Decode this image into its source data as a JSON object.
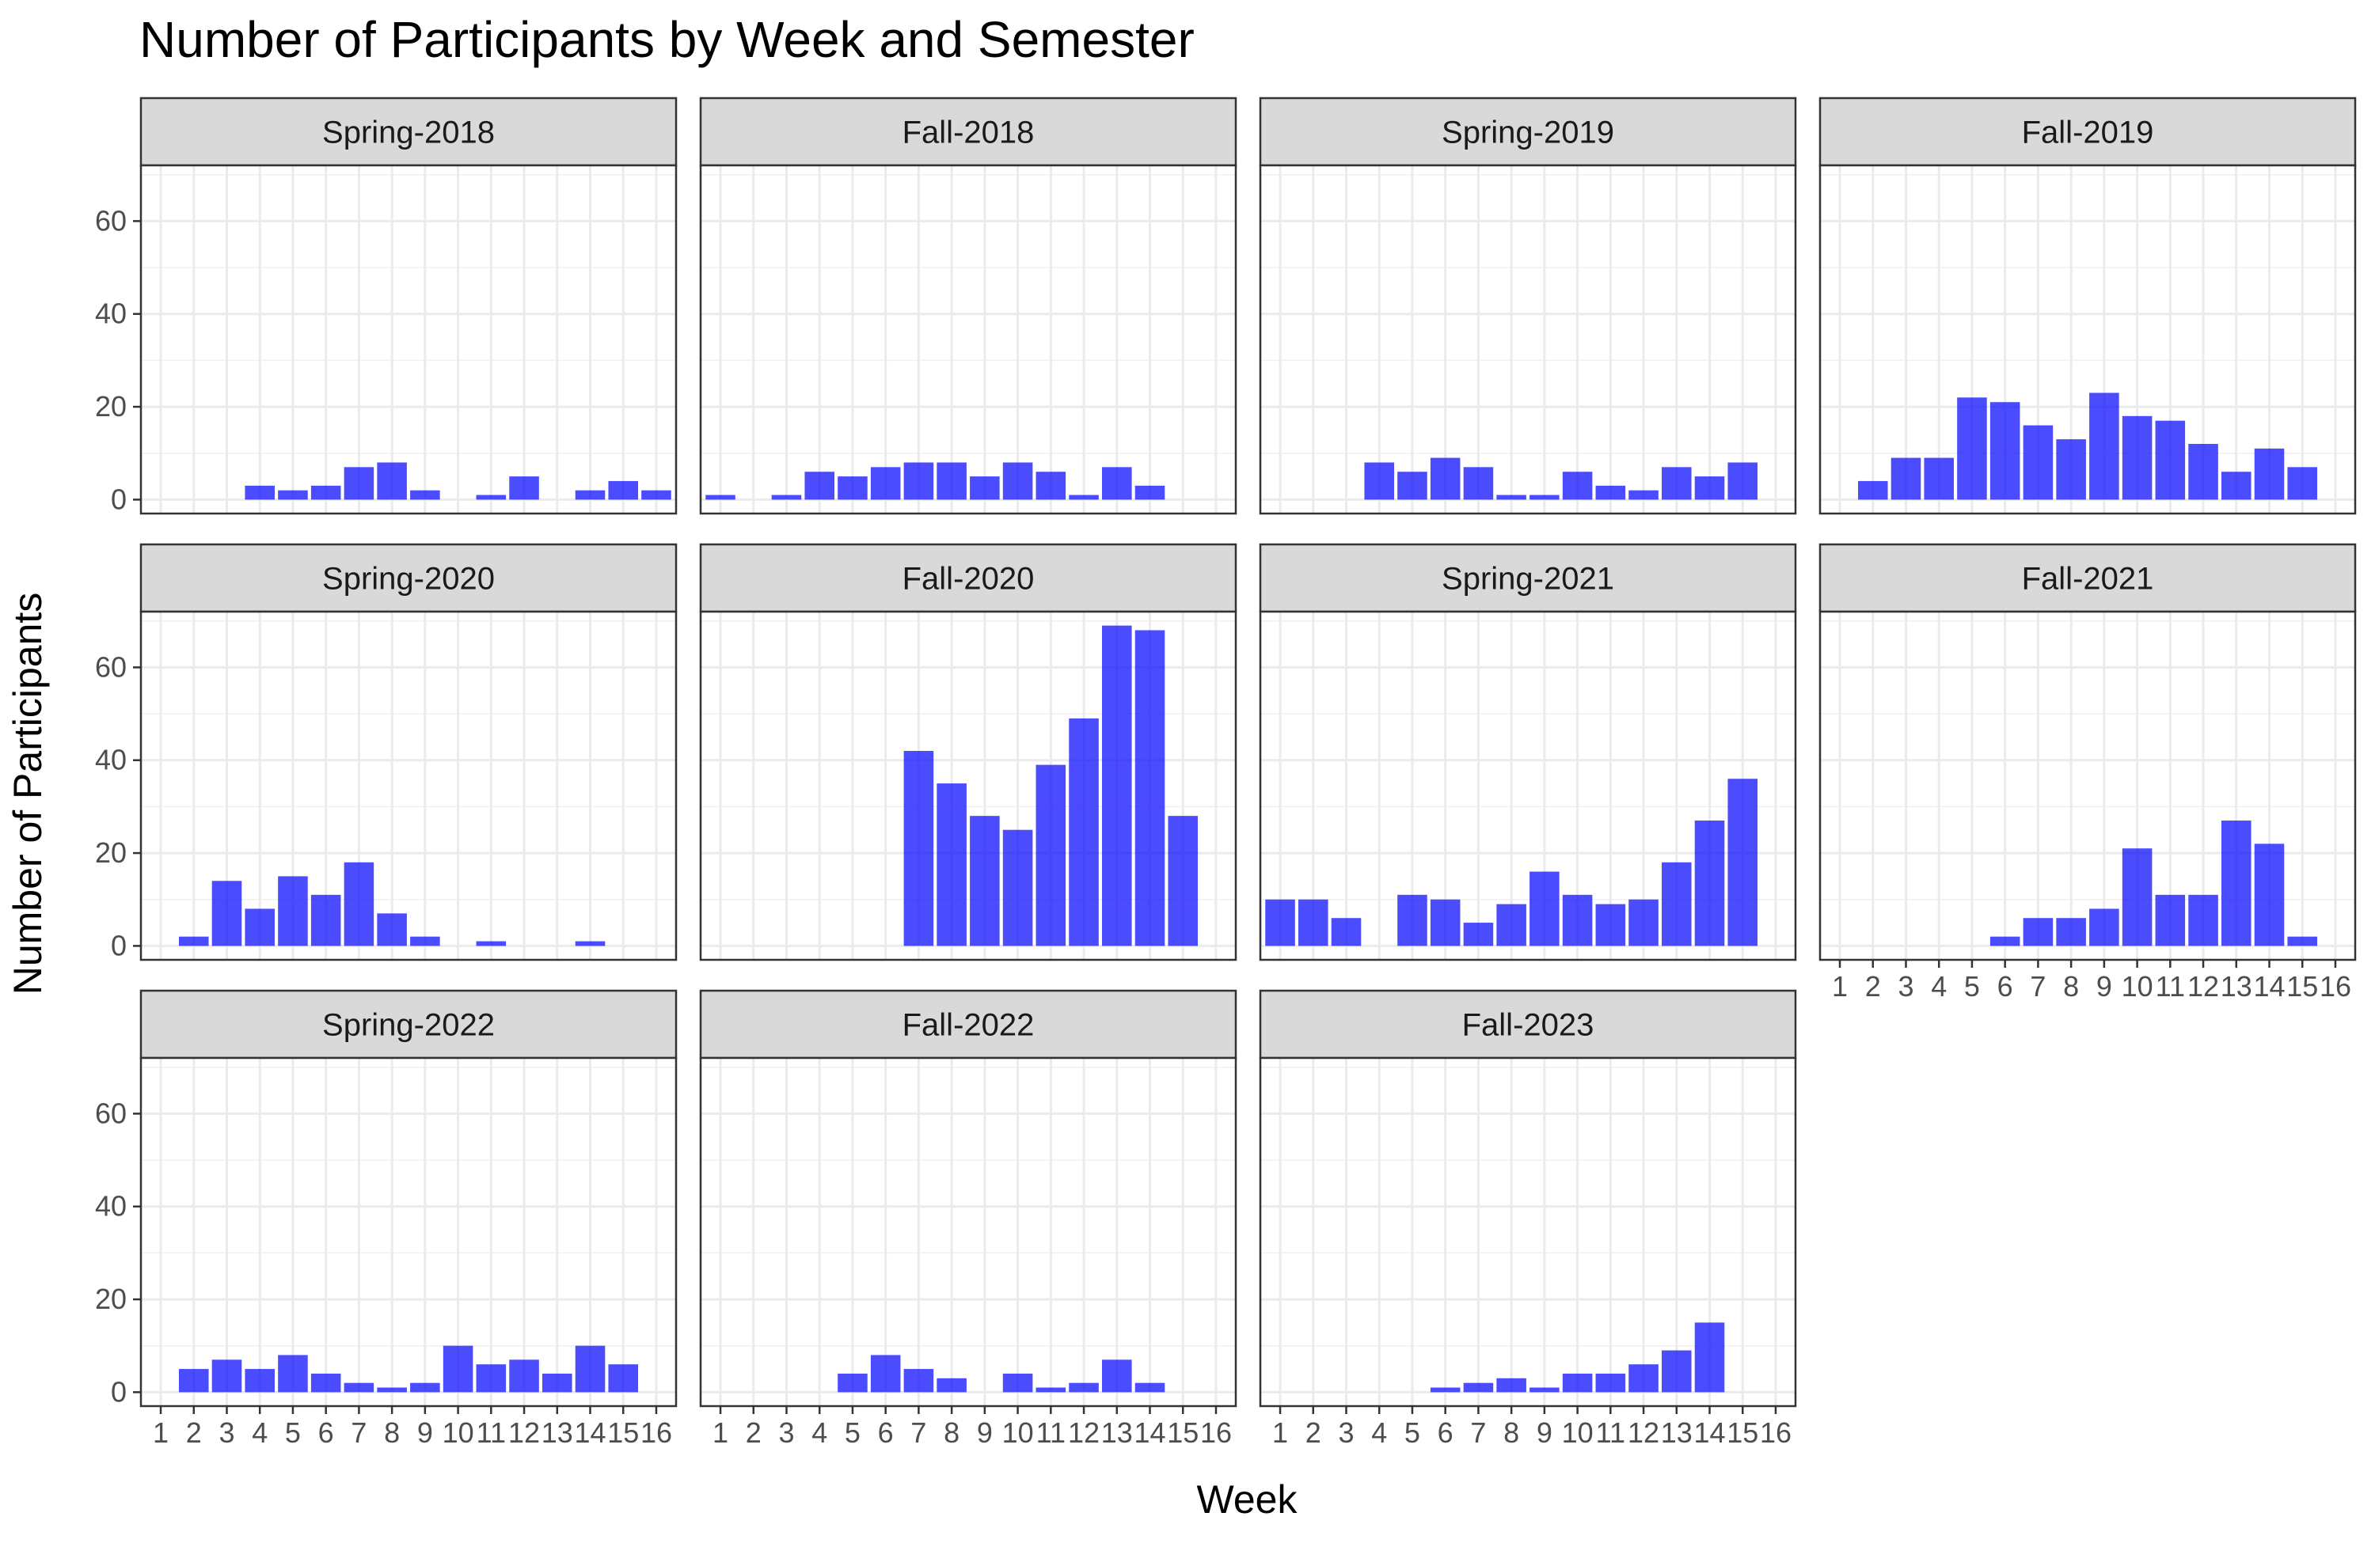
{
  "chart_data": {
    "type": "bar",
    "title": "Number of Participants by Week and Semester",
    "xlabel": "Week",
    "ylabel": "Number of Participants",
    "x_ticks": [
      "1",
      "2",
      "3",
      "4",
      "5",
      "6",
      "7",
      "8",
      "9",
      "10",
      "11",
      "12",
      "13",
      "14",
      "15",
      "16"
    ],
    "y_ticks": [
      0,
      20,
      40,
      60
    ],
    "ylim": [
      -3,
      72
    ],
    "grid": true,
    "bar_color": "#0000ff",
    "panels": [
      {
        "semester": "Spring-2018",
        "weeks": [
          4,
          5,
          6,
          7,
          8,
          9,
          11,
          12,
          14,
          15,
          16
        ],
        "values": [
          3,
          2,
          3,
          7,
          8,
          2,
          1,
          5,
          2,
          4,
          2
        ]
      },
      {
        "semester": "Fall-2018",
        "weeks": [
          1,
          3,
          4,
          5,
          6,
          7,
          8,
          9,
          10,
          11,
          12,
          13,
          14
        ],
        "values": [
          1,
          1,
          6,
          5,
          7,
          8,
          8,
          5,
          8,
          6,
          1,
          7,
          3
        ]
      },
      {
        "semester": "Spring-2019",
        "weeks": [
          4,
          5,
          6,
          7,
          8,
          9,
          10,
          11,
          12,
          13,
          14,
          15
        ],
        "values": [
          8,
          6,
          9,
          7,
          1,
          1,
          6,
          3,
          2,
          7,
          5,
          8
        ]
      },
      {
        "semester": "Fall-2019",
        "weeks": [
          2,
          3,
          4,
          5,
          6,
          7,
          8,
          9,
          10,
          11,
          12,
          13,
          14,
          15
        ],
        "values": [
          4,
          9,
          9,
          22,
          21,
          16,
          13,
          23,
          18,
          17,
          12,
          6,
          11,
          7
        ]
      },
      {
        "semester": "Spring-2020",
        "weeks": [
          2,
          3,
          4,
          5,
          6,
          7,
          8,
          9,
          11,
          14
        ],
        "values": [
          2,
          14,
          8,
          15,
          11,
          18,
          7,
          2,
          1,
          1
        ]
      },
      {
        "semester": "Fall-2020",
        "weeks": [
          7,
          8,
          9,
          10,
          11,
          12,
          13,
          14,
          15
        ],
        "values": [
          42,
          35,
          28,
          25,
          39,
          49,
          69,
          68,
          28
        ]
      },
      {
        "semester": "Spring-2021",
        "weeks": [
          1,
          2,
          3,
          5,
          6,
          7,
          8,
          9,
          10,
          11,
          12,
          13,
          14,
          15
        ],
        "values": [
          10,
          10,
          6,
          11,
          10,
          5,
          9,
          16,
          11,
          9,
          10,
          18,
          27,
          36
        ]
      },
      {
        "semester": "Fall-2021",
        "weeks": [
          6,
          7,
          8,
          9,
          10,
          11,
          12,
          13,
          14,
          15
        ],
        "values": [
          2,
          6,
          6,
          8,
          21,
          11,
          11,
          27,
          22,
          2
        ]
      },
      {
        "semester": "Spring-2022",
        "weeks": [
          2,
          3,
          4,
          5,
          6,
          7,
          8,
          9,
          10,
          11,
          12,
          13,
          14,
          15
        ],
        "values": [
          5,
          7,
          5,
          8,
          4,
          2,
          1,
          2,
          10,
          6,
          7,
          4,
          10,
          6
        ]
      },
      {
        "semester": "Fall-2022",
        "weeks": [
          5,
          6,
          7,
          8,
          10,
          11,
          12,
          13,
          14
        ],
        "values": [
          4,
          8,
          5,
          3,
          4,
          1,
          2,
          7,
          2
        ]
      },
      {
        "semester": "Fall-2023",
        "weeks": [
          6,
          7,
          8,
          9,
          10,
          11,
          12,
          13,
          14
        ],
        "values": [
          1,
          2,
          3,
          1,
          4,
          4,
          6,
          9,
          15
        ]
      }
    ]
  }
}
